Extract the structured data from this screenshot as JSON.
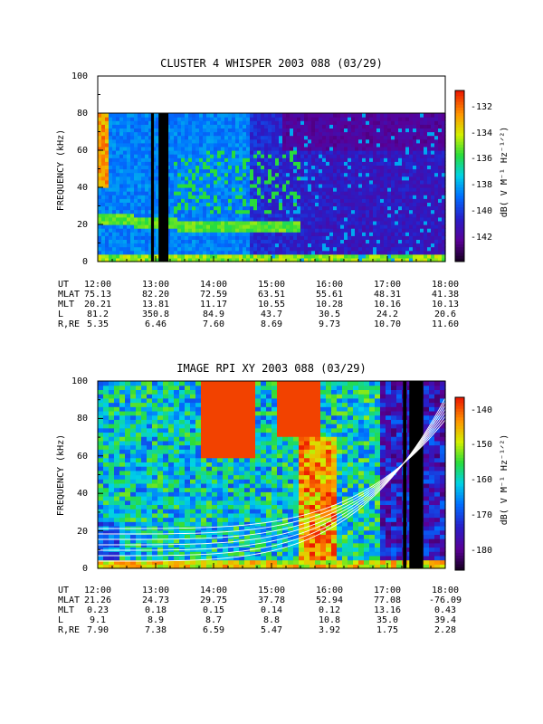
{
  "chart_data": [
    {
      "type": "heatmap",
      "title": "CLUSTER 4 WHISPER 2003 088 (03/29)",
      "ylabel": "FREQUENCY (kHz)",
      "ylim": [
        0,
        100
      ],
      "y_ticks": [
        "0",
        "20",
        "40",
        "60",
        "80",
        "100"
      ],
      "x_ticks": [
        "12:00",
        "13:00",
        "14:00",
        "15:00",
        "16:00",
        "17:00",
        "18:00"
      ],
      "x_range_hours": [
        12,
        18
      ],
      "data_top_khz": 80,
      "colorbar": {
        "label": "dB( V M⁻¹ Hz⁻¹ᐟ²)",
        "range": [
          -143.5,
          -131.5
        ],
        "ticks": [
          "-132",
          "-134",
          "-136",
          "-138",
          "-140",
          "-142"
        ]
      },
      "gaps_hours": [
        [
          12.92,
          12.97
        ],
        [
          13.05,
          13.22
        ]
      ],
      "ephemeris": {
        "labels": [
          "UT",
          "MLAT",
          "MLT",
          "L",
          "R,RE"
        ],
        "rows": [
          [
            "12:00",
            "13:00",
            "14:00",
            "15:00",
            "16:00",
            "17:00",
            "18:00"
          ],
          [
            "75.13",
            "82.20",
            "72.59",
            "63.51",
            "55.61",
            "48.31",
            "41.38"
          ],
          [
            "20.21",
            "13.81",
            "11.17",
            "10.55",
            "10.28",
            "10.16",
            "10.13"
          ],
          [
            "81.2",
            "350.8",
            "84.9",
            "43.7",
            "30.5",
            "24.2",
            "20.6"
          ],
          [
            "5.35",
            "6.46",
            "7.60",
            "8.69",
            "9.73",
            "10.70",
            "11.60"
          ]
        ]
      }
    },
    {
      "type": "heatmap",
      "title": "IMAGE RPI XY 2003 088 (03/29)",
      "ylabel": "FREQUENCY (kHz)",
      "ylim": [
        0,
        100
      ],
      "y_ticks": [
        "0",
        "20",
        "40",
        "60",
        "80",
        "100"
      ],
      "x_ticks": [
        "12:00",
        "13:00",
        "14:00",
        "15:00",
        "16:00",
        "17:00",
        "18:00"
      ],
      "x_range_hours": [
        12,
        18
      ],
      "colorbar": {
        "label": "dB( V M⁻¹ Hz⁻¹ᐟ²)",
        "range": [
          -185,
          -135
        ],
        "ticks": [
          "-140",
          "-150",
          "-160",
          "-170",
          "-180"
        ]
      },
      "gaps_hours": [
        [
          17.27,
          17.33
        ],
        [
          17.38,
          17.62
        ]
      ],
      "ephemeris": {
        "labels": [
          "UT",
          "MLAT",
          "MLT",
          "L",
          "R,RE"
        ],
        "rows": [
          [
            "12:00",
            "13:00",
            "14:00",
            "15:00",
            "16:00",
            "17:00",
            "18:00"
          ],
          [
            "21.26",
            "24.73",
            "29.75",
            "37.78",
            "52.94",
            "77.08",
            "-76.09"
          ],
          [
            "0.23",
            "0.18",
            "0.15",
            "0.14",
            "0.12",
            "13.16",
            "0.43"
          ],
          [
            "9.1",
            "8.9",
            "8.7",
            "8.8",
            "10.8",
            "35.0",
            "39.4"
          ],
          [
            "7.90",
            "7.38",
            "6.59",
            "5.47",
            "3.92",
            "1.75",
            "2.28"
          ]
        ]
      }
    }
  ]
}
